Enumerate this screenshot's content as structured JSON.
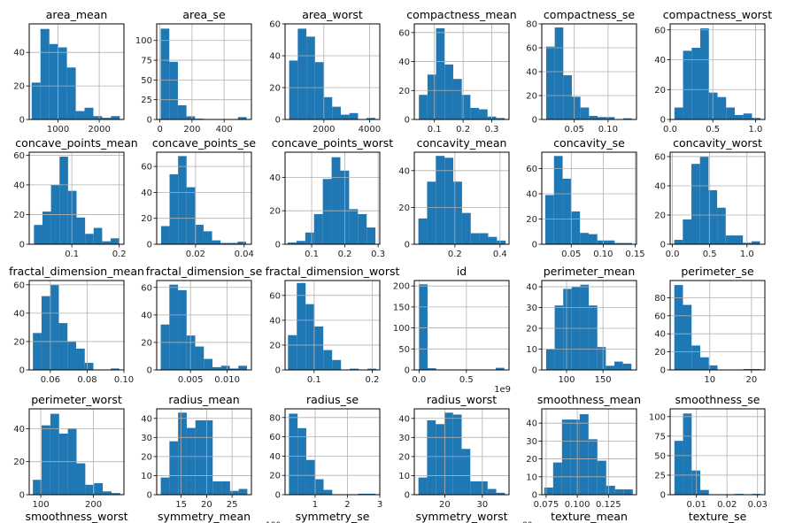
{
  "figure": {
    "bar_color": "#1f77b4",
    "grid_color": "#b0b0b0",
    "clipped_fragments": [
      "100",
      "80"
    ]
  },
  "chart_data": [
    {
      "type": "bar",
      "title": "area_mean",
      "xlim": [
        300,
        2600
      ],
      "ylim": [
        0,
        57
      ],
      "bin_range": [
        360,
        2500
      ],
      "values": [
        22,
        54,
        45,
        43,
        31,
        5,
        7,
        2,
        1,
        2
      ],
      "xticks": [
        1000,
        2000
      ],
      "xtick_labels": [
        "1000",
        "2000"
      ],
      "yticks": [
        0,
        20,
        40
      ],
      "ytick_labels": [
        "0",
        "20",
        "40"
      ],
      "grid": true
    },
    {
      "type": "bar",
      "title": "area_se",
      "xlim": [
        -20,
        570
      ],
      "ylim": [
        0,
        121
      ],
      "bin_range": [
        5,
        540
      ],
      "values": [
        115,
        73,
        18,
        4,
        1,
        0,
        0,
        0,
        0,
        3
      ],
      "xticks": [
        0,
        200,
        400
      ],
      "xtick_labels": [
        "0",
        "200",
        "400"
      ],
      "yticks": [
        0,
        25,
        50,
        75,
        100
      ],
      "ytick_labels": [
        "0",
        "25",
        "50",
        "75",
        "100"
      ],
      "grid": true
    },
    {
      "type": "bar",
      "title": "area_worst",
      "xlim": [
        300,
        4450
      ],
      "ylim": [
        0,
        60
      ],
      "bin_range": [
        480,
        4250
      ],
      "values": [
        37,
        57,
        52,
        36,
        14,
        8,
        3,
        4,
        0,
        1
      ],
      "xticks": [
        2000,
        4000
      ],
      "xtick_labels": [
        "2000",
        "4000"
      ],
      "yticks": [
        0,
        20,
        40,
        60
      ],
      "ytick_labels": [
        "0",
        "20",
        "40",
        "60"
      ],
      "grid": true
    },
    {
      "type": "bar",
      "title": "compactness_mean",
      "xlim": [
        0.03,
        0.36
      ],
      "ylim": [
        0,
        66
      ],
      "bin_range": [
        0.046,
        0.345
      ],
      "values": [
        17,
        31,
        63,
        38,
        28,
        17,
        8,
        7,
        2,
        1
      ],
      "xticks": [
        0.1,
        0.2,
        0.3
      ],
      "xtick_labels": [
        "0.1",
        "0.2",
        "0.3"
      ],
      "yticks": [
        0,
        20,
        40,
        60
      ],
      "ytick_labels": [
        "0",
        "20",
        "40",
        "60"
      ],
      "grid": true
    },
    {
      "type": "bar",
      "title": "compactness_se",
      "xlim": [
        0.002,
        0.142
      ],
      "ylim": [
        0,
        80
      ],
      "bin_range": [
        0.0085,
        0.135
      ],
      "values": [
        61,
        77,
        37,
        19,
        10,
        3,
        2,
        2,
        0,
        1
      ],
      "xticks": [
        0.05,
        0.1
      ],
      "xtick_labels": [
        "0.05",
        "0.10"
      ],
      "yticks": [
        0,
        20,
        40,
        60,
        80
      ],
      "ytick_labels": [
        "0",
        "20",
        "40",
        "60",
        "80"
      ],
      "grid": true
    },
    {
      "type": "bar",
      "title": "compactness_worst",
      "xlim": [
        0.0,
        1.11
      ],
      "ylim": [
        0,
        64
      ],
      "bin_range": [
        0.05,
        1.06
      ],
      "values": [
        8,
        46,
        48,
        61,
        18,
        15,
        8,
        3,
        4,
        1
      ],
      "xticks": [
        0.0,
        0.5,
        1.0
      ],
      "xtick_labels": [
        "0.0",
        "0.5",
        "1.0"
      ],
      "yticks": [
        0,
        20,
        40,
        60
      ],
      "ytick_labels": [
        "0",
        "20",
        "40",
        "60"
      ],
      "grid": true
    },
    {
      "type": "bar",
      "title": "concave_points_mean",
      "xlim": [
        0.01,
        0.21
      ],
      "ylim": [
        0,
        62
      ],
      "bin_range": [
        0.02,
        0.2
      ],
      "values": [
        13,
        22,
        40,
        59,
        36,
        18,
        7,
        11,
        2,
        4
      ],
      "xticks": [
        0.1,
        0.2
      ],
      "xtick_labels": [
        "0.1",
        "0.2"
      ],
      "yticks": [
        0,
        20,
        40,
        60
      ],
      "ytick_labels": [
        "0",
        "20",
        "40",
        "60"
      ],
      "grid": true
    },
    {
      "type": "bar",
      "title": "concave_points_se",
      "xlim": [
        0.004,
        0.043
      ],
      "ylim": [
        0,
        71
      ],
      "bin_range": [
        0.0058,
        0.0408
      ],
      "values": [
        14,
        54,
        68,
        44,
        15,
        10,
        3,
        1,
        1,
        2
      ],
      "xticks": [
        0.02,
        0.04
      ],
      "xtick_labels": [
        "0.02",
        "0.04"
      ],
      "yticks": [
        0,
        20,
        40,
        60
      ],
      "ytick_labels": [
        "0",
        "20",
        "40",
        "60"
      ],
      "grid": true
    },
    {
      "type": "bar",
      "title": "concave_points_worst",
      "xlim": [
        0.02,
        0.305
      ],
      "ylim": [
        0,
        55
      ],
      "bin_range": [
        0.028,
        0.292
      ],
      "values": [
        1,
        2,
        7,
        18,
        39,
        52,
        44,
        21,
        18,
        10
      ],
      "xticks": [
        0.1,
        0.2,
        0.3
      ],
      "xtick_labels": [
        "0.1",
        "0.2",
        "0.3"
      ],
      "yticks": [
        0,
        20,
        40
      ],
      "ytick_labels": [
        "0",
        "20",
        "40"
      ],
      "grid": true
    },
    {
      "type": "bar",
      "title": "concavity_mean",
      "xlim": [
        0.02,
        0.44
      ],
      "ylim": [
        0,
        50
      ],
      "bin_range": [
        0.038,
        0.425
      ],
      "values": [
        14,
        34,
        48,
        47,
        34,
        17,
        6,
        6,
        4,
        2
      ],
      "xticks": [
        0.2,
        0.4
      ],
      "xtick_labels": [
        "0.2",
        "0.4"
      ],
      "yticks": [
        0,
        20,
        40
      ],
      "ytick_labels": [
        "0",
        "20",
        "40"
      ],
      "grid": true
    },
    {
      "type": "bar",
      "title": "concavity_se",
      "xlim": [
        0.004,
        0.152
      ],
      "ylim": [
        0,
        73
      ],
      "bin_range": [
        0.0095,
        0.145
      ],
      "values": [
        39,
        70,
        52,
        26,
        9,
        8,
        3,
        3,
        1,
        1
      ],
      "xticks": [
        0.05,
        0.1,
        0.15
      ],
      "xtick_labels": [
        "0.05",
        "0.10",
        "0.15"
      ],
      "yticks": [
        0,
        20,
        40,
        60
      ],
      "ytick_labels": [
        "0",
        "20",
        "40",
        "60"
      ],
      "grid": true
    },
    {
      "type": "bar",
      "title": "concavity_worst",
      "xlim": [
        -0.03,
        1.24
      ],
      "ylim": [
        0,
        63
      ],
      "bin_range": [
        0.025,
        1.175
      ],
      "values": [
        3,
        17,
        55,
        60,
        37,
        25,
        6,
        6,
        1,
        2
      ],
      "xticks": [
        0.0,
        0.5,
        1.0
      ],
      "xtick_labels": [
        "0.0",
        "0.5",
        "1.0"
      ],
      "yticks": [
        0,
        20,
        40,
        60
      ],
      "ytick_labels": [
        "0",
        "20",
        "40",
        "60"
      ],
      "grid": true
    },
    {
      "type": "bar",
      "title": "fractal_dimension_mean",
      "xlim": [
        0.0485,
        0.1
      ],
      "ylim": [
        0,
        63
      ],
      "bin_range": [
        0.0505,
        0.0975
      ],
      "values": [
        26,
        52,
        60,
        33,
        20,
        15,
        5,
        0,
        0,
        1
      ],
      "xticks": [
        0.06,
        0.08,
        0.1
      ],
      "xtick_labels": [
        "0.06",
        "0.08",
        "0.10"
      ],
      "yticks": [
        0,
        20,
        40,
        60
      ],
      "ytick_labels": [
        "0",
        "20",
        "40",
        "60"
      ],
      "grid": true
    },
    {
      "type": "bar",
      "title": "fractal_dimension_se",
      "xlim": [
        0.0004,
        0.0133
      ],
      "ylim": [
        0,
        65
      ],
      "bin_range": [
        0.00095,
        0.0127
      ],
      "values": [
        33,
        62,
        58,
        25,
        17,
        8,
        2,
        3,
        1,
        3
      ],
      "xticks": [
        0.005,
        0.01
      ],
      "xtick_labels": [
        "0.005",
        "0.010"
      ],
      "yticks": [
        0,
        20,
        40,
        60
      ],
      "ytick_labels": [
        "0",
        "20",
        "40",
        "60"
      ],
      "grid": true
    },
    {
      "type": "bar",
      "title": "fractal_dimension_worst",
      "xlim": [
        0.05,
        0.213
      ],
      "ylim": [
        0,
        72
      ],
      "bin_range": [
        0.055,
        0.207
      ],
      "values": [
        28,
        70,
        53,
        35,
        16,
        8,
        0,
        1,
        0,
        1
      ],
      "xticks": [
        0.1,
        0.2
      ],
      "xtick_labels": [
        "0.1",
        "0.2"
      ],
      "yticks": [
        0,
        20,
        40,
        60
      ],
      "ytick_labels": [
        "0",
        "20",
        "40",
        "60"
      ],
      "grid": true
    },
    {
      "type": "bar",
      "title": "id",
      "xlim": [
        -0.05,
        0.95
      ],
      "ylim": [
        0,
        213
      ],
      "bin_range": [
        0.0,
        0.9
      ],
      "values": [
        204,
        4,
        0,
        0,
        0,
        0,
        0,
        0,
        0,
        5
      ],
      "xticks": [
        0.0,
        0.5
      ],
      "xtick_labels": [
        "0.0",
        "0.5"
      ],
      "x_offset_label": "1e9",
      "yticks": [
        0,
        50,
        100,
        150,
        200
      ],
      "ytick_labels": [
        "0",
        "50",
        "100",
        "150",
        "200"
      ],
      "grid": true
    },
    {
      "type": "bar",
      "title": "perimeter_mean",
      "xlim": [
        66,
        196
      ],
      "ylim": [
        0,
        43
      ],
      "bin_range": [
        72,
        189
      ],
      "values": [
        10,
        31,
        39,
        40,
        41,
        31,
        11,
        2,
        4,
        3
      ],
      "xticks": [
        100,
        150
      ],
      "xtick_labels": [
        "100",
        "150"
      ],
      "yticks": [
        0,
        10,
        20,
        30,
        40
      ],
      "ytick_labels": [
        "0",
        "10",
        "20",
        "30",
        "40"
      ],
      "grid": true
    },
    {
      "type": "bar",
      "title": "perimeter_se",
      "xlim": [
        0.5,
        23.2
      ],
      "ylim": [
        0,
        99
      ],
      "bin_range": [
        1.5,
        22.2
      ],
      "values": [
        94,
        72,
        27,
        14,
        5,
        0,
        0,
        0,
        1,
        1
      ],
      "xticks": [
        10,
        20
      ],
      "xtick_labels": [
        "10",
        "20"
      ],
      "yticks": [
        0,
        20,
        40,
        60,
        80
      ],
      "ytick_labels": [
        "0",
        "20",
        "40",
        "60",
        "80"
      ],
      "grid": true
    },
    {
      "type": "bar",
      "title": "perimeter_worst",
      "xlim": [
        78,
        258
      ],
      "ylim": [
        0,
        52
      ],
      "bin_range": [
        85,
        251
      ],
      "values": [
        9,
        42,
        49,
        37,
        40,
        19,
        6,
        7,
        2,
        1
      ],
      "xticks": [
        100,
        200
      ],
      "xtick_labels": [
        "100",
        "200"
      ],
      "yticks": [
        0,
        20,
        40
      ],
      "ytick_labels": [
        "0",
        "20",
        "40"
      ],
      "grid": true
    },
    {
      "type": "bar",
      "title": "radius_mean",
      "xlim": [
        10.2,
        28.8
      ],
      "ylim": [
        0,
        45
      ],
      "bin_range": [
        11.0,
        28.0
      ],
      "values": [
        9,
        28,
        43,
        35,
        39,
        39,
        7,
        7,
        2,
        3
      ],
      "xticks": [
        15,
        20,
        25
      ],
      "xtick_labels": [
        "15",
        "20",
        "25"
      ],
      "yticks": [
        0,
        10,
        20,
        30,
        40
      ],
      "ytick_labels": [
        "0",
        "10",
        "20",
        "30",
        "40"
      ],
      "grid": true
    },
    {
      "type": "bar",
      "title": "radius_se",
      "xlim": [
        0.07,
        3.0
      ],
      "ylim": [
        0,
        89
      ],
      "bin_range": [
        0.19,
        2.87
      ],
      "values": [
        84,
        69,
        36,
        16,
        5,
        0,
        0,
        0,
        1,
        1
      ],
      "xticks": [
        1,
        2,
        3
      ],
      "xtick_labels": [
        "1",
        "2",
        "3"
      ],
      "yticks": [
        0,
        20,
        40,
        60,
        80
      ],
      "ytick_labels": [
        "0",
        "20",
        "40",
        "60",
        "80"
      ],
      "grid": true
    },
    {
      "type": "bar",
      "title": "radius_worst",
      "xlim": [
        11.9,
        37.1
      ],
      "ylim": [
        0,
        45
      ],
      "bin_range": [
        13.0,
        36.0
      ],
      "values": [
        9,
        39,
        37,
        43,
        42,
        24,
        7,
        7,
        3,
        1
      ],
      "xticks": [
        20,
        30
      ],
      "xtick_labels": [
        "20",
        "30"
      ],
      "yticks": [
        0,
        10,
        20,
        30,
        40
      ],
      "ytick_labels": [
        "0",
        "10",
        "20",
        "30",
        "40"
      ],
      "grid": true
    },
    {
      "type": "bar",
      "title": "smoothness_mean",
      "xlim": [
        0.0715,
        0.1475
      ],
      "ylim": [
        0,
        48
      ],
      "bin_range": [
        0.0735,
        0.1445
      ],
      "values": [
        4,
        18,
        42,
        42,
        45,
        31,
        19,
        5,
        3,
        3
      ],
      "xticks": [
        0.075,
        0.1,
        0.125
      ],
      "xtick_labels": [
        "0.075",
        "0.100",
        "0.125"
      ],
      "yticks": [
        0,
        10,
        20,
        30,
        40
      ],
      "ytick_labels": [
        "0",
        "10",
        "20",
        "30",
        "40"
      ],
      "grid": true
    },
    {
      "type": "bar",
      "title": "smoothness_se",
      "xlim": [
        0.0014,
        0.0324
      ],
      "ylim": [
        0,
        110
      ],
      "bin_range": [
        0.0028,
        0.031
      ],
      "values": [
        69,
        104,
        31,
        6,
        0,
        0,
        0,
        1,
        0,
        1
      ],
      "xticks": [
        0.01,
        0.02,
        0.03
      ],
      "xtick_labels": [
        "0.01",
        "0.02",
        "0.03"
      ],
      "yticks": [
        0,
        25,
        50,
        75,
        100
      ],
      "ytick_labels": [
        "0",
        "25",
        "50",
        "75",
        "100"
      ],
      "grid": true
    },
    {
      "type": "bar",
      "title": "smoothness_worst",
      "clipped": true
    },
    {
      "type": "bar",
      "title": "symmetry_mean",
      "clipped": true
    },
    {
      "type": "bar",
      "title": "symmetry_se",
      "clipped": true
    },
    {
      "type": "bar",
      "title": "symmetry_worst",
      "clipped": true
    },
    {
      "type": "bar",
      "title": "texture_mean",
      "clipped": true
    },
    {
      "type": "bar",
      "title": "texture_se",
      "clipped": true
    }
  ]
}
